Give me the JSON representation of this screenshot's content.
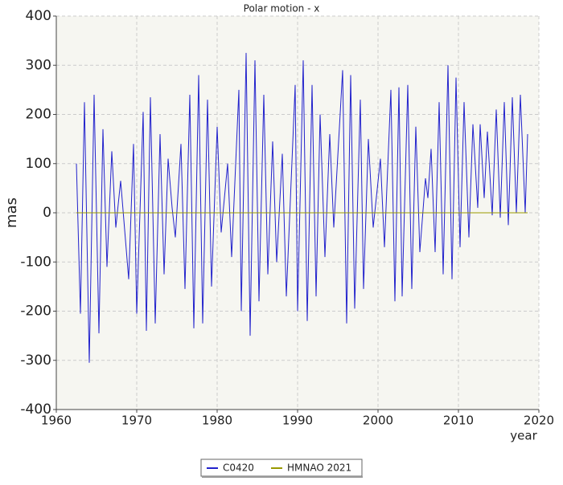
{
  "chart_data": {
    "type": "line",
    "title": "Polar motion - x",
    "xlabel": "year",
    "ylabel": "mas",
    "xlim": [
      1960,
      2020
    ],
    "xticks": [
      1960,
      1970,
      1980,
      1990,
      2000,
      2010,
      2020
    ],
    "ylim": [
      -400,
      400
    ],
    "yticks": [
      -400,
      -300,
      -200,
      -100,
      0,
      100,
      200,
      300,
      400
    ],
    "grid": true,
    "legend": "bottom",
    "series": [
      {
        "name": "C0420",
        "color": "#2222cc",
        "x": [
          1962.5,
          1963.0,
          1963.5,
          1964.1,
          1964.7,
          1965.3,
          1965.8,
          1966.3,
          1966.9,
          1967.4,
          1968.0,
          1969.0,
          1969.6,
          1970.0,
          1970.8,
          1971.2,
          1971.7,
          1972.3,
          1972.9,
          1973.4,
          1973.9,
          1974.4,
          1974.8,
          1975.5,
          1976.0,
          1976.6,
          1977.1,
          1977.7,
          1978.2,
          1978.8,
          1979.3,
          1980.0,
          1980.5,
          1981.3,
          1981.8,
          1982.7,
          1983.0,
          1983.6,
          1984.1,
          1984.7,
          1985.2,
          1985.8,
          1986.3,
          1986.9,
          1987.4,
          1988.1,
          1988.6,
          1989.7,
          1990.0,
          1990.7,
          1991.2,
          1991.8,
          1992.3,
          1992.8,
          1993.4,
          1994.0,
          1994.5,
          1995.6,
          1996.1,
          1996.6,
          1997.1,
          1997.8,
          1998.2,
          1998.8,
          1999.4,
          2000.3,
          2000.8,
          2001.6,
          2002.1,
          2002.6,
          2003.0,
          2003.7,
          2004.2,
          2004.7,
          2005.2,
          2005.9,
          2006.2,
          2006.6,
          2007.1,
          2007.6,
          2008.1,
          2008.7,
          2009.2,
          2009.7,
          2010.2,
          2010.7,
          2011.3,
          2011.8,
          2012.4,
          2012.7,
          2013.2,
          2013.6,
          2014.2,
          2014.7,
          2015.2,
          2015.7,
          2016.2,
          2016.7,
          2017.2,
          2017.7,
          2018.3,
          2018.6
        ],
        "values": [
          100,
          -205,
          225,
          -305,
          240,
          -245,
          170,
          -110,
          125,
          -30,
          65,
          -135,
          140,
          -205,
          205,
          -240,
          235,
          -225,
          160,
          -125,
          110,
          10,
          -50,
          140,
          -155,
          240,
          -235,
          280,
          -225,
          230,
          -150,
          175,
          -40,
          100,
          -90,
          250,
          -200,
          325,
          -250,
          310,
          -180,
          240,
          -125,
          145,
          -100,
          120,
          -170,
          260,
          -200,
          310,
          -220,
          260,
          -170,
          200,
          -90,
          160,
          -30,
          290,
          -225,
          280,
          -195,
          230,
          -155,
          150,
          -30,
          110,
          -70,
          250,
          -180,
          255,
          -170,
          260,
          -155,
          175,
          -80,
          70,
          30,
          130,
          -80,
          225,
          -125,
          300,
          -135,
          275,
          -70,
          225,
          -50,
          180,
          10,
          180,
          30,
          165,
          -5,
          210,
          -10,
          225,
          -25,
          235,
          0,
          240,
          0,
          160
        ]
      },
      {
        "name": "HMNAO 2021",
        "color": "#999900",
        "x": [
          1962.5,
          2018.6
        ],
        "values": [
          0,
          0
        ]
      }
    ]
  }
}
